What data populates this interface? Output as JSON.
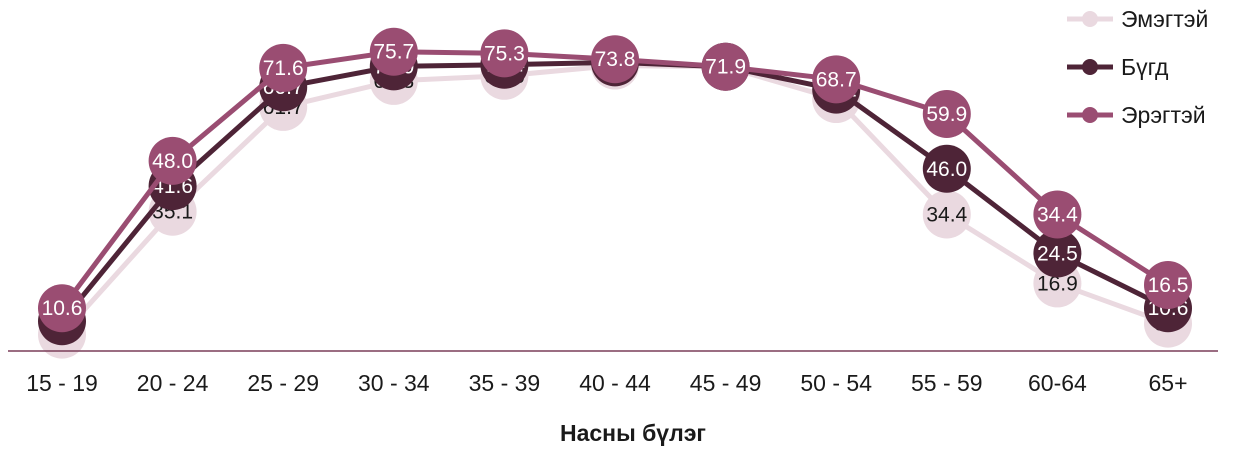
{
  "chart_data": {
    "type": "line",
    "categories": [
      "15 - 19",
      "20 - 24",
      "25 - 29",
      "30 - 34",
      "35 - 39",
      "40 - 44",
      "45 - 49",
      "50 - 54",
      "55 - 59",
      "60-64",
      "65+"
    ],
    "xlabel": "Насны бүлэг",
    "ylabel": "",
    "ylim": [
      0,
      80
    ],
    "grid": false,
    "legend_position": "top-right",
    "series": [
      {
        "name": "Эмэгтэй",
        "color": "#ead9e0",
        "label_color": "#1a1a1a",
        "values": [
          3.9,
          35.1,
          61.7,
          68.3,
          69.6,
          72.2,
          71.9,
          63.7,
          34.4,
          16.9,
          6.7
        ]
      },
      {
        "name": "Бүгд",
        "color": "#4e2437",
        "label_color": "#ffffff",
        "values": [
          7.3,
          41.6,
          66.7,
          72.0,
          72.4,
          73.0,
          71.9,
          66.1,
          46.0,
          24.5,
          10.6
        ]
      },
      {
        "name": "Эрэгтэй",
        "color": "#9a4d72",
        "label_color": "#ffffff",
        "values": [
          10.6,
          48.0,
          71.6,
          75.7,
          75.3,
          73.8,
          71.9,
          68.7,
          59.9,
          34.4,
          16.5
        ]
      }
    ],
    "legend_order": [
      "Эмэгтэй",
      "Бүгд",
      "Эрэгтэй"
    ],
    "axis_color": "#7a3d58"
  }
}
